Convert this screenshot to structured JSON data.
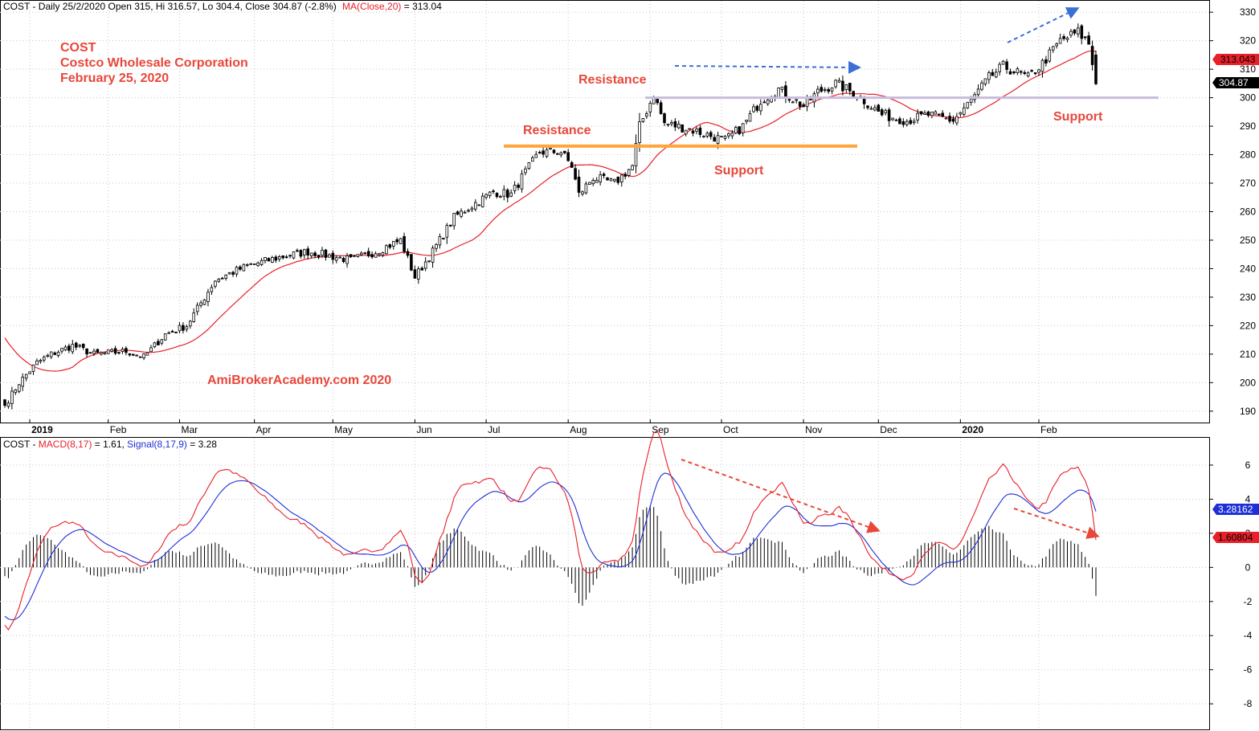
{
  "header": {
    "price_prefix": "COST - Daily 25/2/2020 Open 315, Hi 316.57, Lo 304.4, Close 304.87 (-2.8%)",
    "ma_label": "MA(Close,20)",
    "ma_value": " = 313.04",
    "macd_prefix": "COST - ",
    "macd_label": "MACD(8,17)",
    "macd_value": " = 1.61, ",
    "signal_label": "Signal(8,17,9)",
    "signal_value": " = 3.28"
  },
  "annotations": {
    "ticker": "COST",
    "company": "Costco Wholesale Corporation",
    "date": "February 25, 2020",
    "watermark": "AmiBrokerAcademy.com  2020",
    "resistance1": "Resistance",
    "resistance2": "Resistance",
    "support1": "Support",
    "support2": "Support"
  },
  "price_tags": {
    "ma": "313.043",
    "close": "304.87"
  },
  "macd_tags": {
    "signal": "3.28162",
    "macd": "1.60804"
  },
  "colors": {
    "candle": "#000000",
    "ma_line": "#e8202a",
    "macd_line": "#e8202a",
    "signal_line": "#1f2fd6",
    "histogram": "#000000",
    "annotation_text": "#e8473a",
    "resistance_line": "#ffa53a",
    "support_line": "#c8bcdc",
    "arrow_blue": "#3b6fd6",
    "arrow_red": "#e8473a",
    "grid": "#c8c8c8"
  },
  "chart_data": [
    {
      "type": "candlestick",
      "ylim": [
        186,
        334
      ],
      "yticks": [
        190,
        200,
        210,
        220,
        230,
        240,
        250,
        260,
        270,
        280,
        290,
        300,
        310,
        320,
        330
      ],
      "x_labels": [
        "2019",
        "Feb",
        "Mar",
        "Apr",
        "May",
        "Jun",
        "Jul",
        "Aug",
        "Sep",
        "Oct",
        "Nov",
        "Dec",
        "2020",
        "Feb"
      ],
      "anchors": [
        [
          "2018-12-24",
          192
        ],
        [
          "2018-12-28",
          200
        ],
        [
          "2019-01-04",
          207
        ],
        [
          "2019-01-10",
          210
        ],
        [
          "2019-01-18",
          213
        ],
        [
          "2019-01-28",
          210
        ],
        [
          "2019-02-08",
          211
        ],
        [
          "2019-02-15",
          209
        ],
        [
          "2019-02-25",
          217
        ],
        [
          "2019-03-05",
          220
        ],
        [
          "2019-03-08",
          226
        ],
        [
          "2019-03-15",
          236
        ],
        [
          "2019-03-28",
          241
        ],
        [
          "2019-04-10",
          244
        ],
        [
          "2019-04-22",
          246
        ],
        [
          "2019-05-08",
          243
        ],
        [
          "2019-05-17",
          246
        ],
        [
          "2019-05-28",
          250
        ],
        [
          "2019-06-03",
          237
        ],
        [
          "2019-06-10",
          246
        ],
        [
          "2019-06-18",
          258
        ],
        [
          "2019-06-26",
          263
        ],
        [
          "2019-07-03",
          267
        ],
        [
          "2019-07-10",
          266
        ],
        [
          "2019-07-15",
          272
        ],
        [
          "2019-07-22",
          281
        ],
        [
          "2019-07-30",
          281
        ],
        [
          "2019-08-02",
          276
        ],
        [
          "2019-08-06",
          266
        ],
        [
          "2019-08-12",
          272
        ],
        [
          "2019-08-20",
          270
        ],
        [
          "2019-08-27",
          276
        ],
        [
          "2019-08-29",
          290
        ],
        [
          "2019-09-04",
          301
        ],
        [
          "2019-09-09",
          291
        ],
        [
          "2019-09-18",
          289
        ],
        [
          "2019-10-02",
          285
        ],
        [
          "2019-10-09",
          290
        ],
        [
          "2019-10-16",
          299
        ],
        [
          "2019-10-23",
          303
        ],
        [
          "2019-11-01",
          297
        ],
        [
          "2019-11-07",
          302
        ],
        [
          "2019-11-14",
          305
        ],
        [
          "2019-11-22",
          301
        ],
        [
          "2019-12-03",
          294
        ],
        [
          "2019-12-12",
          292
        ],
        [
          "2019-12-20",
          294
        ],
        [
          "2019-12-31",
          292
        ],
        [
          "2020-01-07",
          299
        ],
        [
          "2020-01-14",
          307
        ],
        [
          "2020-01-20",
          311
        ],
        [
          "2020-01-29",
          307
        ],
        [
          "2020-02-04",
          312
        ],
        [
          "2020-02-11",
          320
        ],
        [
          "2020-02-18",
          323
        ],
        [
          "2020-02-21",
          319
        ],
        [
          "2020-02-25",
          305
        ]
      ],
      "last_candle": {
        "date": "2020-02-25",
        "open": 315,
        "high": 316.57,
        "low": 304.4,
        "close": 304.87
      },
      "ma_period": 20
    },
    {
      "type": "line",
      "ylim": [
        -9.5,
        7.6
      ],
      "yticks": [
        -8,
        -6,
        -4,
        -2,
        0,
        2,
        4,
        6
      ],
      "series_names": [
        "MACD(8,17)",
        "Signal(8,17,9)"
      ],
      "macd_last": 1.61,
      "signal_last": 3.28
    }
  ],
  "levels": {
    "resistance_low": 283,
    "support_high": 300
  }
}
